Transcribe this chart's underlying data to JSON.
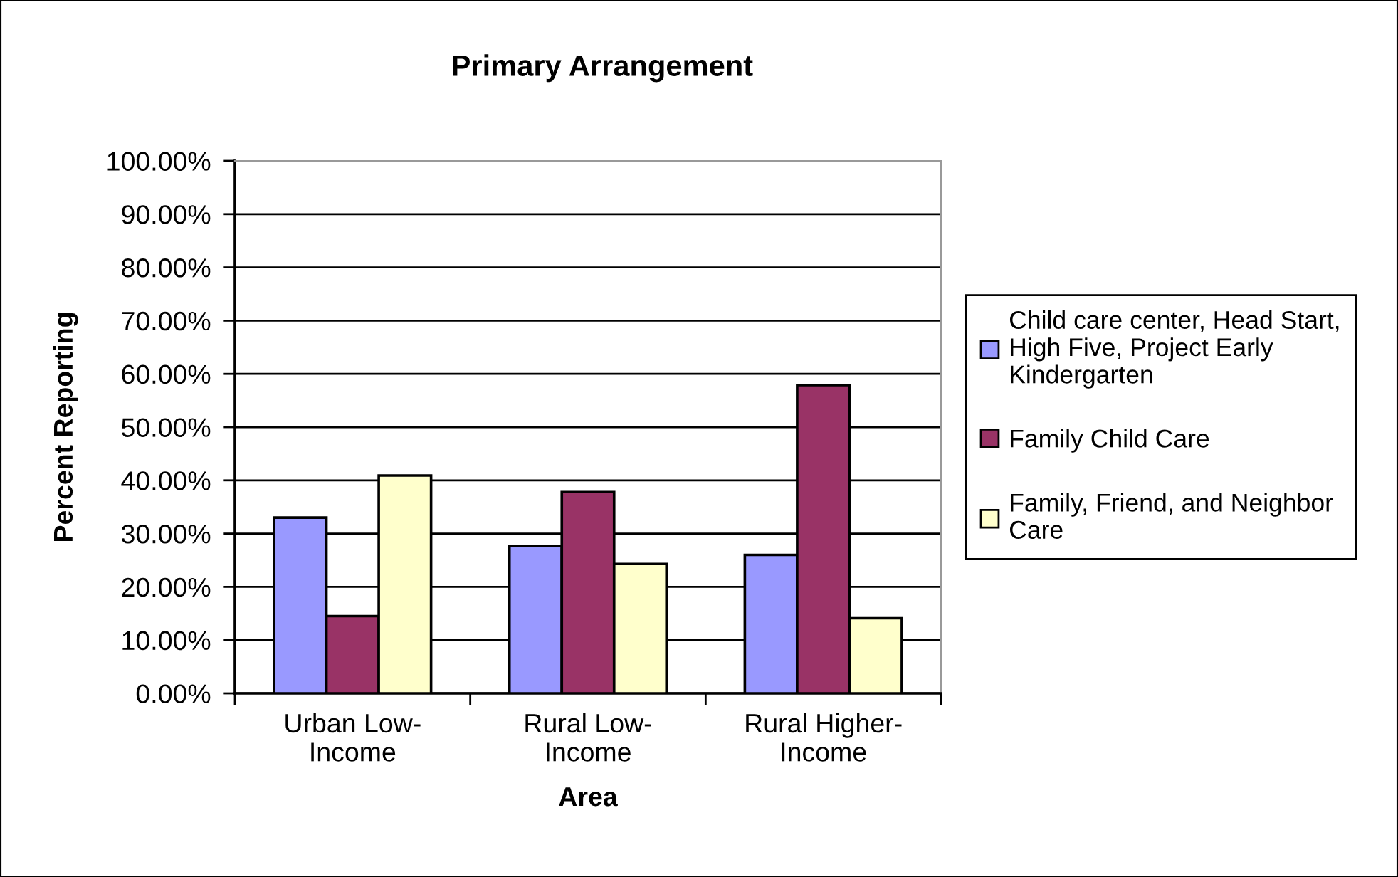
{
  "chart_data": {
    "type": "bar",
    "title": "Primary Arrangement",
    "xlabel": "Area",
    "ylabel": "Percent Reporting",
    "categories": [
      "Urban Low-\nIncome",
      "Rural Low-\nIncome",
      "Rural Higher-\nIncome"
    ],
    "series": [
      {
        "name": "Child care center, Head Start,\nHigh Five, Project Early\nKindergarten",
        "color": "#9999ff",
        "values": [
          33.0,
          27.7,
          26.0
        ]
      },
      {
        "name": "Family Child Care",
        "color": "#993366",
        "values": [
          14.5,
          37.8,
          57.9
        ]
      },
      {
        "name": "Family, Friend, and Neighbor\nCare",
        "color": "#ffffcc",
        "values": [
          40.9,
          24.3,
          14.1
        ]
      }
    ],
    "ylim": [
      0,
      100
    ],
    "yticks": [
      {
        "value": 0,
        "label": "0.00%"
      },
      {
        "value": 10,
        "label": "10.00%"
      },
      {
        "value": 20,
        "label": "20.00%"
      },
      {
        "value": 30,
        "label": "30.00%"
      },
      {
        "value": 40,
        "label": "40.00%"
      },
      {
        "value": 50,
        "label": "50.00%"
      },
      {
        "value": 60,
        "label": "60.00%"
      },
      {
        "value": 70,
        "label": "70.00%"
      },
      {
        "value": 80,
        "label": "80.00%"
      },
      {
        "value": 90,
        "label": "90.00%"
      },
      {
        "value": 100,
        "label": "100.00%"
      }
    ],
    "grid": "y",
    "legend": "right"
  }
}
